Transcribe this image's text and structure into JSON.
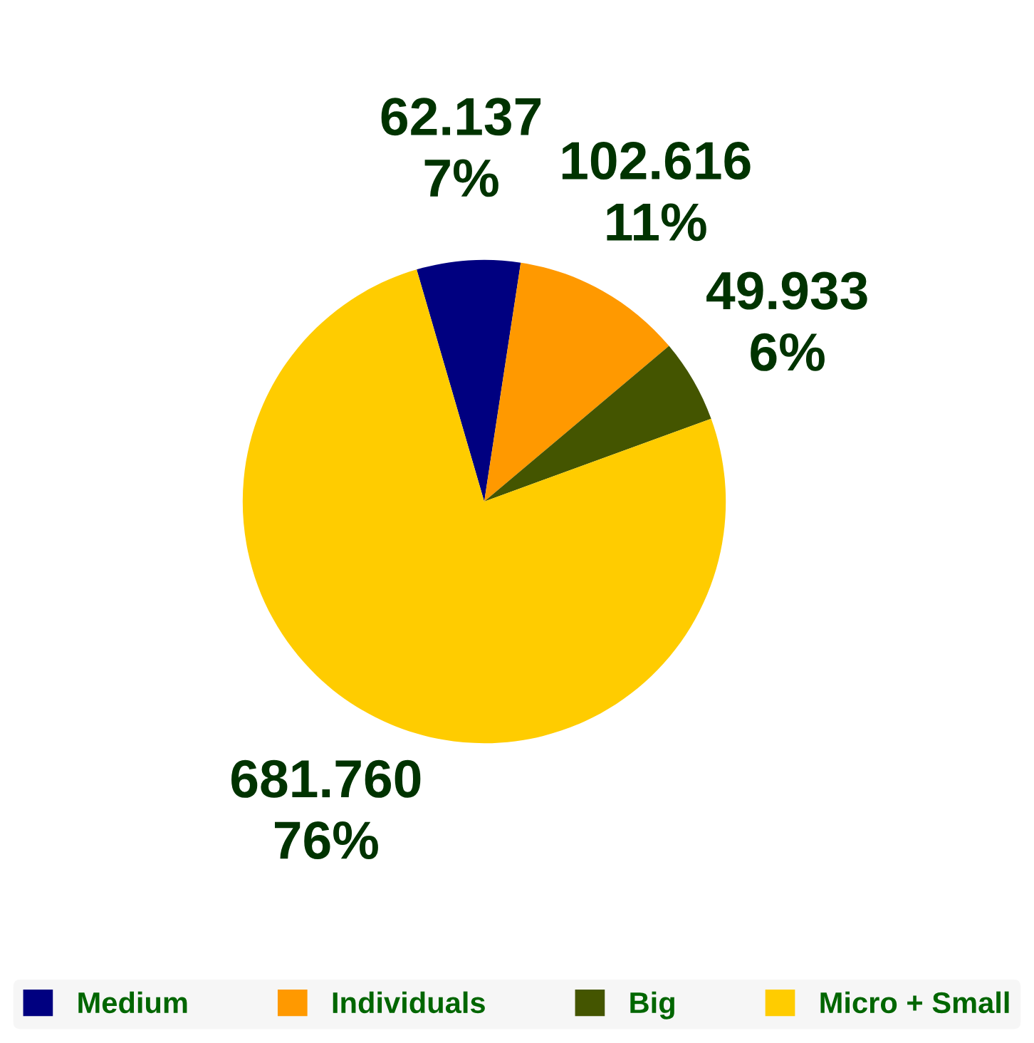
{
  "chart_data": {
    "type": "pie",
    "categories": [
      "Medium",
      "Individuals",
      "Big",
      "Micro + Small"
    ],
    "values": [
      62.137,
      102.616,
      49.933,
      681.76
    ],
    "colors": [
      "#000080",
      "#ff9900",
      "#445500",
      "#ffcc00"
    ],
    "value_labels": [
      "62.137\n7%",
      "102.616\n11%",
      "49.933\n6%",
      "681.760\n76%"
    ],
    "legend": "bottom"
  }
}
